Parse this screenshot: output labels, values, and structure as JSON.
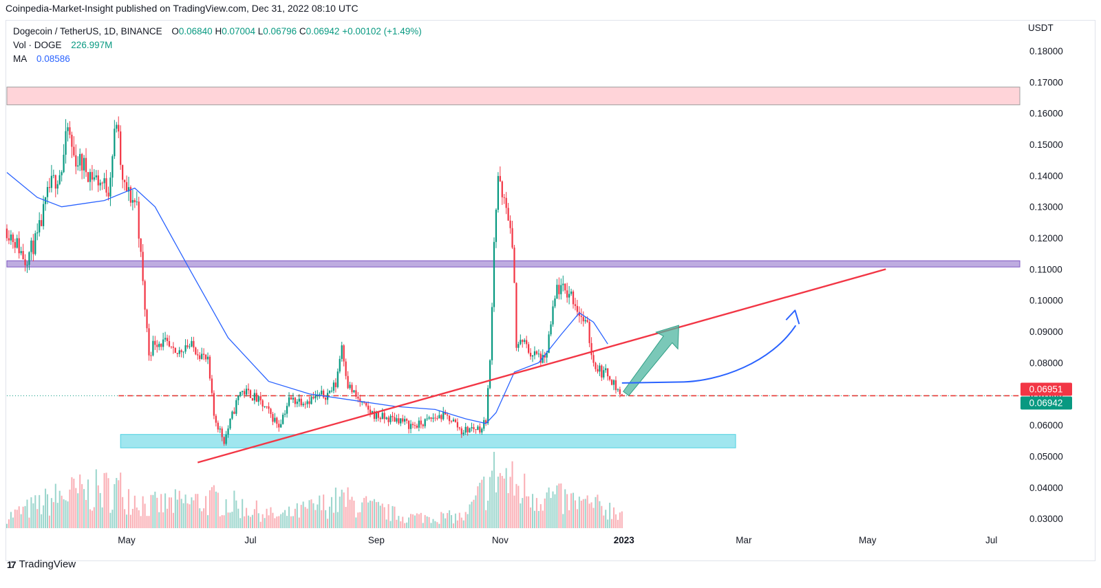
{
  "header": {
    "caption": "Coinpedia-Market-Insight published on TradingView.com, Dec 31, 2022 08:10 UTC"
  },
  "legend": {
    "symbol": "Dogecoin / TetherUS, 1D, BINANCE",
    "o_key": "O",
    "o_val": "0.06840",
    "h_key": "H",
    "h_val": "0.07004",
    "l_key": "L",
    "l_val": "0.06796",
    "c_key": "C",
    "c_val": "0.06942",
    "change": "+0.00102 (+1.49%)",
    "vol_label": "Vol · DOGE",
    "vol_val": "226.997M",
    "ma_label": "MA",
    "ma_val": "0.08586"
  },
  "axis": {
    "currency": "USDT"
  },
  "footer": {
    "brand": "TradingView",
    "logo_mark": "17"
  },
  "colors": {
    "up": "#089981",
    "down": "#f23645",
    "ma": "#2962ff",
    "trendline": "#f23645",
    "resistance_zone": "#ffcdd2",
    "mid_zone": "#b39ddb",
    "support_zone": "#80deea"
  },
  "chart_data": {
    "type": "candlestick",
    "title": "Dogecoin / TetherUS, 1D, BINANCE",
    "ylabel": "USDT",
    "y_ticks": [
      "0.03000",
      "0.04000",
      "0.05000",
      "0.06000",
      "0.07000",
      "0.08000",
      "0.09000",
      "0.10000",
      "0.11000",
      "0.12000",
      "0.13000",
      "0.14000",
      "0.15000",
      "0.16000",
      "0.17000",
      "0.18000"
    ],
    "ylim": [
      0.0265,
      0.1875
    ],
    "x_ticks": [
      {
        "date": "2022-05-01",
        "label": "May"
      },
      {
        "date": "2022-07-01",
        "label": "Jul"
      },
      {
        "date": "2022-09-01",
        "label": "Sep"
      },
      {
        "date": "2022-11-01",
        "label": "Nov"
      },
      {
        "date": "2023-01-01",
        "label": "2023"
      },
      {
        "date": "2023-03-01",
        "label": "Mar"
      },
      {
        "date": "2023-05-01",
        "label": "May"
      },
      {
        "date": "2023-07-01",
        "label": "Jul"
      }
    ],
    "xlim": [
      "2022-03-03",
      "2023-07-15"
    ],
    "price_path": [
      [
        "2022-03-03",
        0.123
      ],
      [
        "2022-03-08",
        0.118
      ],
      [
        "2022-03-12",
        0.113
      ],
      [
        "2022-03-18",
        0.12
      ],
      [
        "2022-03-24",
        0.136
      ],
      [
        "2022-03-30",
        0.142
      ],
      [
        "2022-04-02",
        0.155
      ],
      [
        "2022-04-05",
        0.146
      ],
      [
        "2022-04-10",
        0.143
      ],
      [
        "2022-04-14",
        0.14
      ],
      [
        "2022-04-18",
        0.138
      ],
      [
        "2022-04-22",
        0.136
      ],
      [
        "2022-04-26",
        0.158
      ],
      [
        "2022-04-29",
        0.137
      ],
      [
        "2022-05-03",
        0.133
      ],
      [
        "2022-05-06",
        0.131
      ],
      [
        "2022-05-09",
        0.105
      ],
      [
        "2022-05-12",
        0.083
      ],
      [
        "2022-05-15",
        0.087
      ],
      [
        "2022-05-20",
        0.086
      ],
      [
        "2022-05-25",
        0.082
      ],
      [
        "2022-05-30",
        0.086
      ],
      [
        "2022-06-05",
        0.084
      ],
      [
        "2022-06-10",
        0.08
      ],
      [
        "2022-06-13",
        0.063
      ],
      [
        "2022-06-18",
        0.055
      ],
      [
        "2022-06-22",
        0.063
      ],
      [
        "2022-06-26",
        0.071
      ],
      [
        "2022-07-01",
        0.07
      ],
      [
        "2022-07-06",
        0.067
      ],
      [
        "2022-07-10",
        0.064
      ],
      [
        "2022-07-15",
        0.06
      ],
      [
        "2022-07-20",
        0.068
      ],
      [
        "2022-07-25",
        0.068
      ],
      [
        "2022-07-29",
        0.068
      ],
      [
        "2022-08-03",
        0.069
      ],
      [
        "2022-08-08",
        0.07
      ],
      [
        "2022-08-12",
        0.073
      ],
      [
        "2022-08-15",
        0.086
      ],
      [
        "2022-08-18",
        0.073
      ],
      [
        "2022-08-22",
        0.069
      ],
      [
        "2022-08-27",
        0.065
      ],
      [
        "2022-09-01",
        0.063
      ],
      [
        "2022-09-06",
        0.062
      ],
      [
        "2022-09-12",
        0.062
      ],
      [
        "2022-09-17",
        0.06
      ],
      [
        "2022-09-22",
        0.06
      ],
      [
        "2022-09-28",
        0.062
      ],
      [
        "2022-10-03",
        0.063
      ],
      [
        "2022-10-08",
        0.062
      ],
      [
        "2022-10-13",
        0.058
      ],
      [
        "2022-10-18",
        0.059
      ],
      [
        "2022-10-23",
        0.059
      ],
      [
        "2022-10-25",
        0.062
      ],
      [
        "2022-10-27",
        0.08
      ],
      [
        "2022-10-29",
        0.12
      ],
      [
        "2022-10-31",
        0.14
      ],
      [
        "2022-11-02",
        0.132
      ],
      [
        "2022-11-05",
        0.128
      ],
      [
        "2022-11-08",
        0.108
      ],
      [
        "2022-11-09",
        0.085
      ],
      [
        "2022-11-12",
        0.087
      ],
      [
        "2022-11-16",
        0.083
      ],
      [
        "2022-11-20",
        0.082
      ],
      [
        "2022-11-23",
        0.08
      ],
      [
        "2022-11-26",
        0.092
      ],
      [
        "2022-11-29",
        0.104
      ],
      [
        "2022-12-02",
        0.103
      ],
      [
        "2022-12-06",
        0.102
      ],
      [
        "2022-12-10",
        0.096
      ],
      [
        "2022-12-14",
        0.091
      ],
      [
        "2022-12-17",
        0.08
      ],
      [
        "2022-12-21",
        0.077
      ],
      [
        "2022-12-25",
        0.076
      ],
      [
        "2022-12-28",
        0.072
      ],
      [
        "2022-12-31",
        0.0694
      ]
    ],
    "ma_path": [
      [
        "2022-03-03",
        0.141
      ],
      [
        "2022-03-18",
        0.133
      ],
      [
        "2022-03-30",
        0.13
      ],
      [
        "2022-04-20",
        0.132
      ],
      [
        "2022-05-05",
        0.136
      ],
      [
        "2022-05-15",
        0.13
      ],
      [
        "2022-06-01",
        0.11
      ],
      [
        "2022-06-20",
        0.088
      ],
      [
        "2022-07-10",
        0.074
      ],
      [
        "2022-07-30",
        0.07
      ],
      [
        "2022-08-20",
        0.068
      ],
      [
        "2022-09-10",
        0.066
      ],
      [
        "2022-09-30",
        0.065
      ],
      [
        "2022-10-15",
        0.062
      ],
      [
        "2022-10-25",
        0.0605
      ],
      [
        "2022-10-30",
        0.064
      ],
      [
        "2022-11-08",
        0.077
      ],
      [
        "2022-11-20",
        0.08
      ],
      [
        "2022-12-01",
        0.089
      ],
      [
        "2022-12-10",
        0.096
      ],
      [
        "2022-12-17",
        0.093
      ],
      [
        "2022-12-24",
        0.086
      ]
    ],
    "volume_path": [
      [
        "2022-03-03",
        0.02
      ],
      [
        "2022-04-01",
        0.06
      ],
      [
        "2022-04-27",
        0.07
      ],
      [
        "2022-05-12",
        0.04
      ],
      [
        "2022-06-15",
        0.05
      ],
      [
        "2022-07-15",
        0.02
      ],
      [
        "2022-08-15",
        0.05
      ],
      [
        "2022-09-15",
        0.02
      ],
      [
        "2022-10-15",
        0.02
      ],
      [
        "2022-10-30",
        0.1
      ],
      [
        "2022-11-10",
        0.07
      ],
      [
        "2022-12-01",
        0.05
      ],
      [
        "2022-12-31",
        0.03
      ]
    ],
    "zones": [
      {
        "label": "resistance",
        "y": [
          0.1627,
          0.1684
        ],
        "from": "2022-03-03",
        "to": "2023-07-15"
      },
      {
        "label": "mid",
        "y": [
          0.1107,
          0.1127
        ],
        "from": "2022-03-03",
        "to": "2023-07-15"
      },
      {
        "label": "support",
        "y": [
          0.0527,
          0.057
        ],
        "from": "2022-04-28",
        "to": "2023-02-25"
      }
    ],
    "trendline": {
      "from": [
        "2022-06-05",
        0.048
      ],
      "to": [
        "2023-05-10",
        0.11
      ]
    },
    "last_price_line": 0.0694,
    "price_labels": [
      {
        "value": 0.06951,
        "text": "0.06951",
        "color": "#f23645"
      },
      {
        "value": 0.06942,
        "text": "0.06942",
        "color": "#089981"
      }
    ],
    "annotations": [
      {
        "kind": "arrow",
        "color": "#4db6a0",
        "from": [
          "2023-01-02",
          0.0701
        ],
        "to": [
          "2023-01-28",
          0.092
        ]
      },
      {
        "kind": "curve",
        "color": "#2962ff",
        "from": [
          "2022-12-31",
          0.0735
        ],
        "via": [
          "2023-01-28",
          0.0738
        ],
        "to": [
          "2023-03-30",
          0.0968
        ]
      }
    ]
  }
}
